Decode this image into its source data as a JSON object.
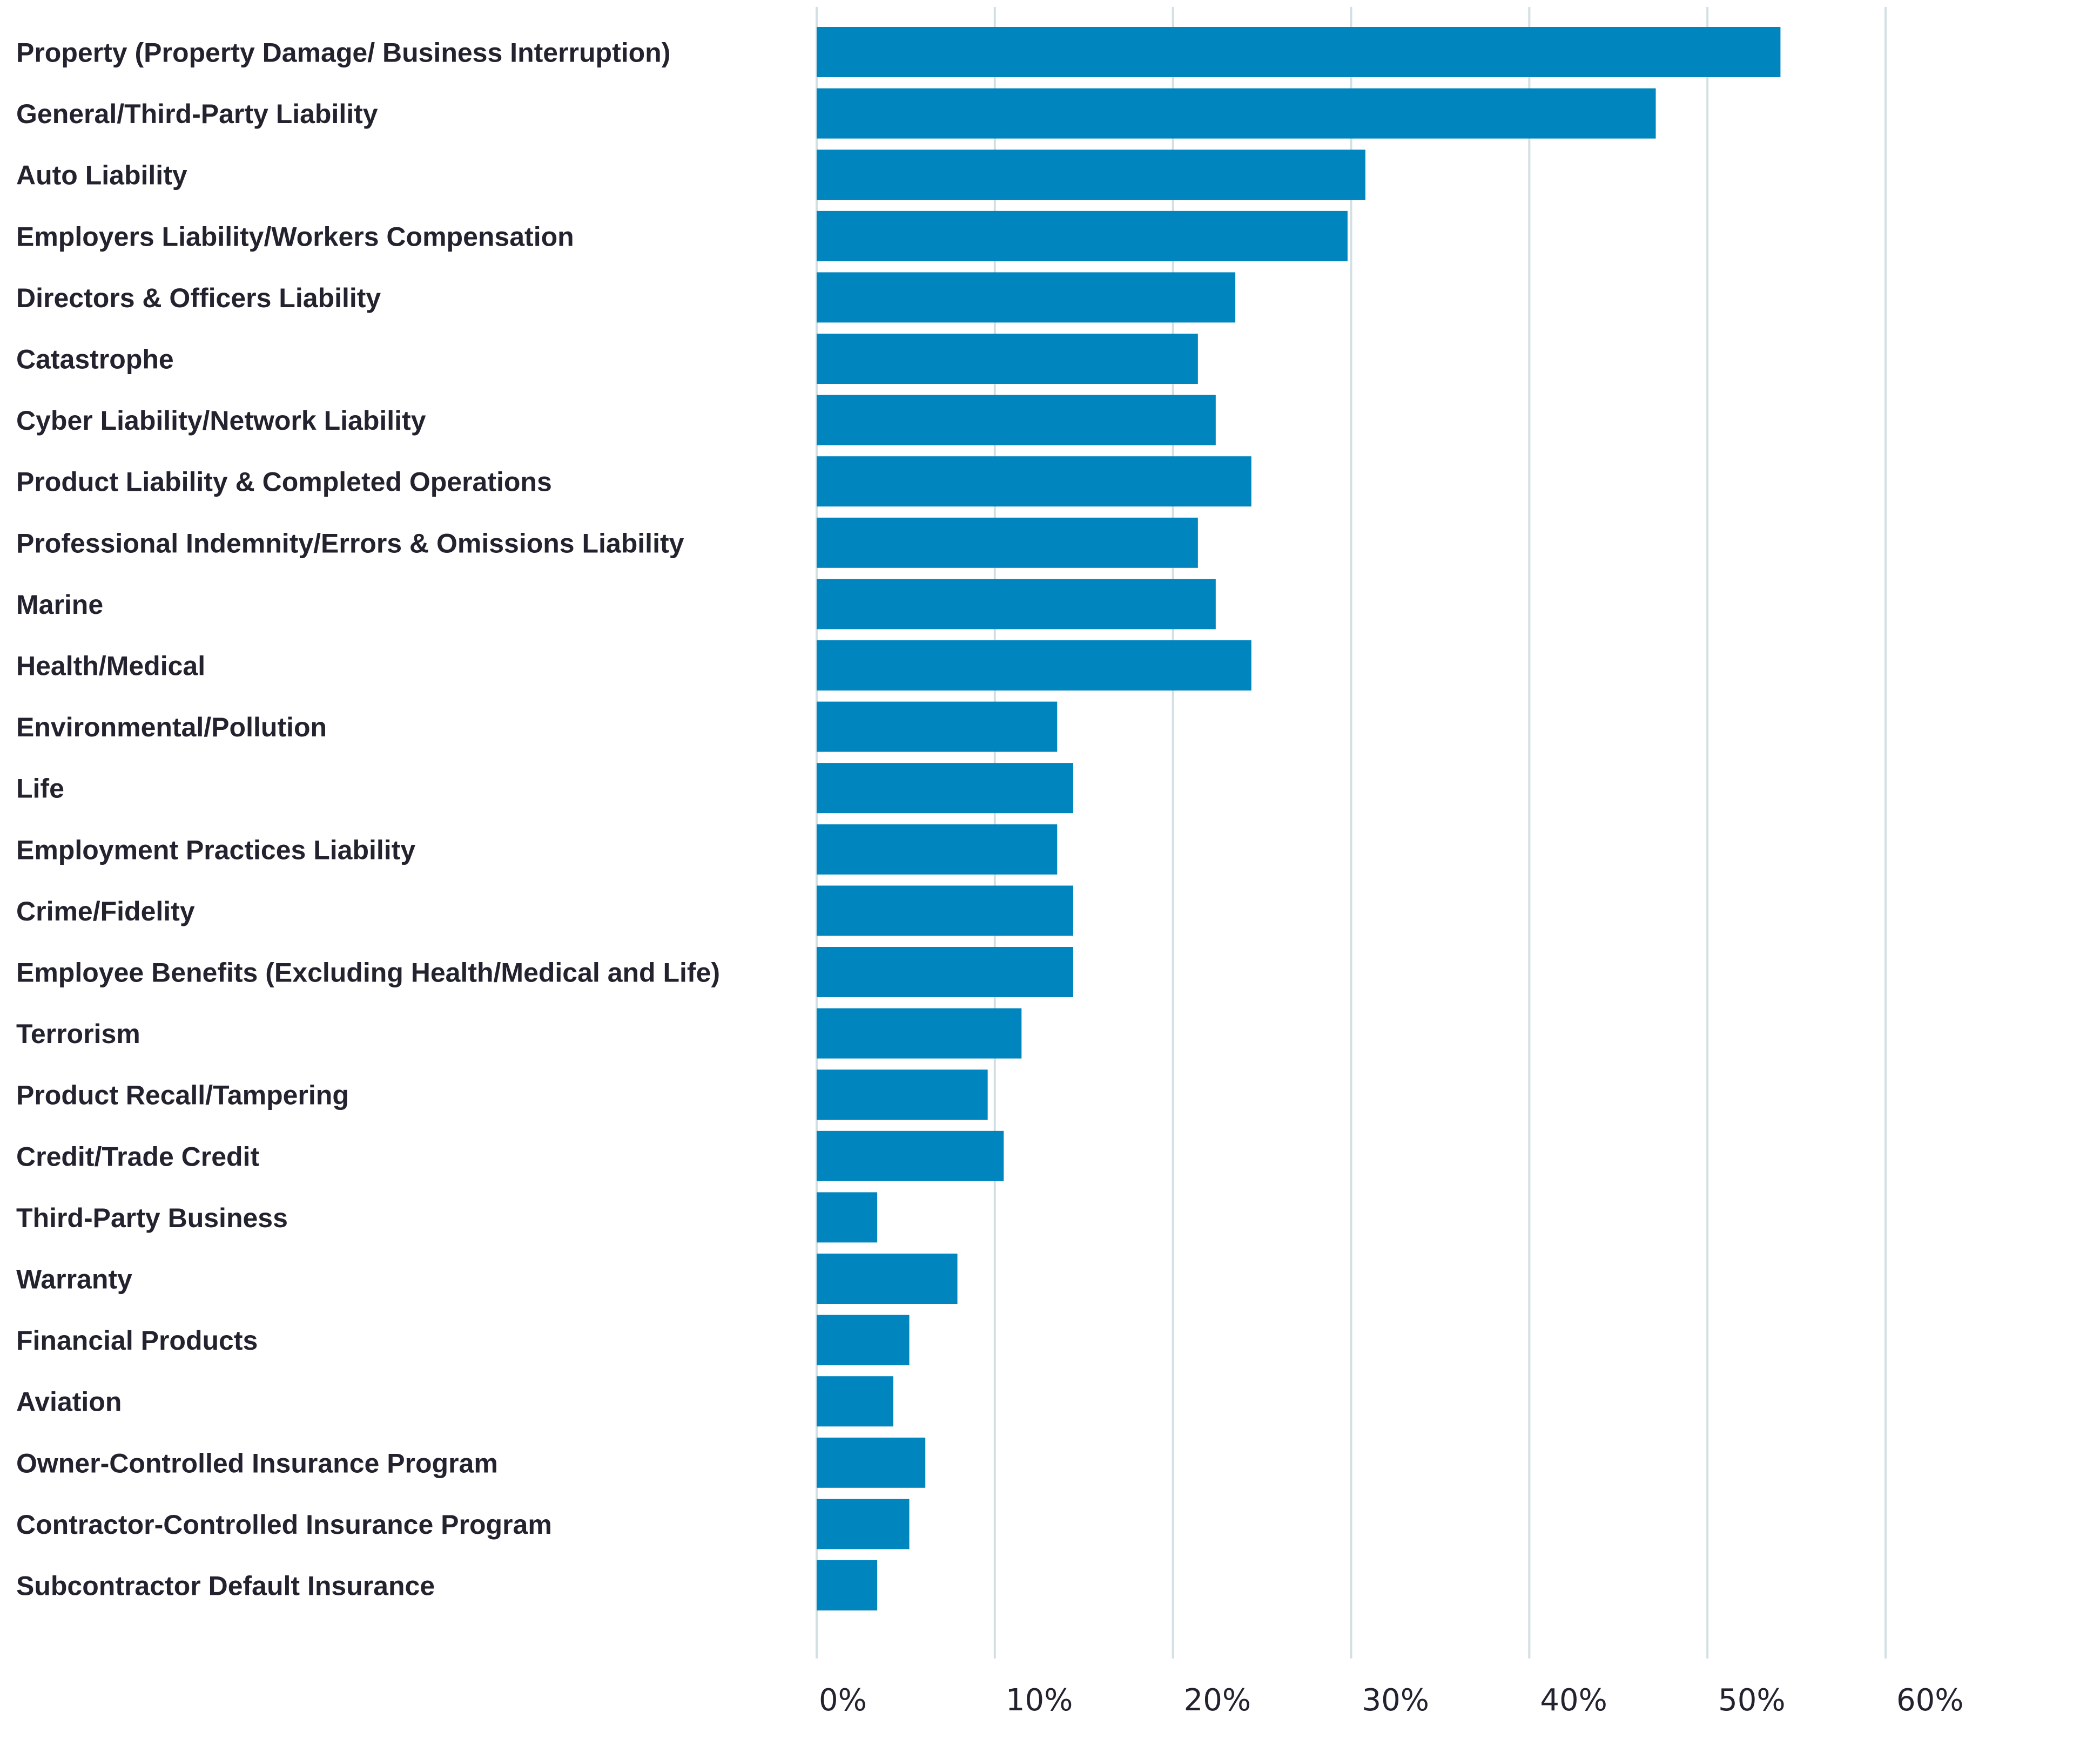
{
  "chart_data": {
    "type": "bar",
    "orientation": "horizontal",
    "title": "",
    "xlabel": "",
    "ylabel": "",
    "xlim": [
      0,
      60
    ],
    "x_ticks": [
      "0%",
      "10%",
      "20%",
      "30%",
      "40%",
      "50%",
      "60%"
    ],
    "grid": "vertical",
    "bar_color": "#0085BE",
    "grid_color": "#D3E0E3",
    "text_color": "#23232F",
    "categories": [
      "Property (Property Damage/ Business Interruption)",
      "General/Third-Party Liability",
      "Auto Liability",
      "Employers Liability/Workers Compensation",
      "Directors & Officers Liability",
      "Catastrophe",
      "Cyber Liability/Network Liability",
      "Product Liability & Completed Operations",
      "Professional Indemnity/Errors & Omissions Liability",
      "Marine",
      "Health/Medical",
      "Environmental/Pollution",
      "Life",
      "Employment Practices Liability",
      "Crime/Fidelity",
      "Employee Benefits (Excluding Health/Medical and Life)",
      "Terrorism",
      "Product Recall/Tampering",
      "Credit/Trade Credit",
      "Third-Party Business",
      "Warranty",
      "Financial Products",
      "Aviation",
      "Owner-Controlled Insurance Program",
      "Contractor-Controlled Insurance Program",
      "Subcontractor Default Insurance"
    ],
    "values": [
      54.1,
      47.1,
      30.8,
      29.8,
      23.5,
      21.4,
      22.4,
      24.4,
      21.4,
      22.4,
      24.4,
      13.5,
      14.4,
      13.5,
      14.4,
      14.4,
      11.5,
      9.6,
      10.5,
      3.4,
      7.9,
      5.2,
      4.3,
      6.1,
      5.2,
      3.4
    ]
  }
}
